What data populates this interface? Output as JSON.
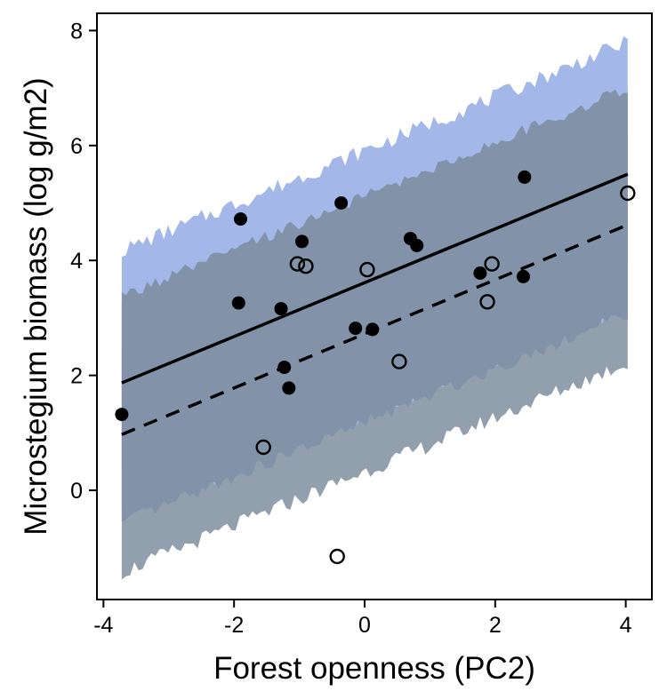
{
  "chart_data": {
    "type": "scatter",
    "title": "",
    "xlabel": "Forest openness (PC2)",
    "ylabel": "Microstegium biomass (log g/m2)",
    "xlim": [
      -4.1,
      4.4
    ],
    "ylim": [
      -1.9,
      8.3
    ],
    "xticks": [
      -4,
      -2,
      0,
      2,
      4
    ],
    "yticks": [
      0,
      2,
      4,
      6,
      8
    ],
    "grid": false,
    "legend": "none",
    "colors": {
      "outer_band": "#a3b8e8",
      "inner_band": "#8293a9",
      "overlap_lower": "#929fac",
      "points": "#000000"
    },
    "bands": {
      "x_range": [
        -3.72,
        4.03
      ],
      "solid_fit": {
        "start": 1.87,
        "end": 5.5
      },
      "dashed_fit": {
        "start": 0.97,
        "end": 4.62
      },
      "solid_band_halfwidth_outer": 2.3,
      "solid_band_halfwidth_inner": 1.5,
      "dashed_band_halfwidth_outer": 2.4,
      "dashed_band_halfwidth_inner": 1.55
    },
    "series": [
      {
        "marker": "filled",
        "line": "solid",
        "points": [
          [
            -3.72,
            1.32
          ],
          [
            -1.9,
            4.72
          ],
          [
            -1.93,
            3.26
          ],
          [
            -1.28,
            3.16
          ],
          [
            -1.23,
            2.14
          ],
          [
            -1.16,
            1.78
          ],
          [
            -0.96,
            4.33
          ],
          [
            -0.36,
            5.0
          ],
          [
            -0.14,
            2.82
          ],
          [
            0.12,
            2.8
          ],
          [
            0.7,
            4.38
          ],
          [
            0.8,
            4.26
          ],
          [
            1.77,
            3.78
          ],
          [
            2.43,
            3.72
          ],
          [
            2.45,
            5.45
          ]
        ]
      },
      {
        "marker": "open",
        "line": "dashed",
        "points": [
          [
            -1.55,
            0.75
          ],
          [
            -1.03,
            3.94
          ],
          [
            -0.9,
            3.9
          ],
          [
            -0.42,
            -1.15
          ],
          [
            0.04,
            3.84
          ],
          [
            0.53,
            2.24
          ],
          [
            1.88,
            3.28
          ],
          [
            1.95,
            3.94
          ],
          [
            4.03,
            5.17
          ]
        ]
      }
    ]
  }
}
